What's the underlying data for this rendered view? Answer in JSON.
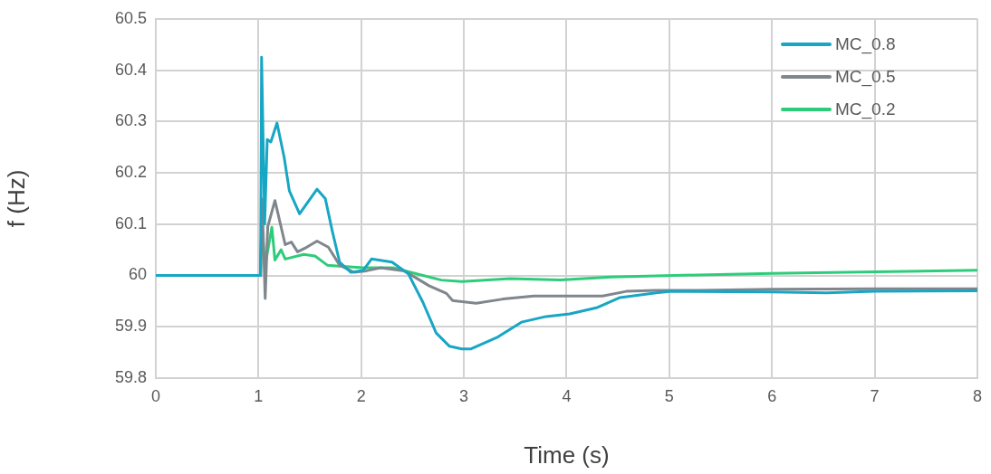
{
  "chart_data": {
    "type": "line",
    "xlabel": "Time (s)",
    "ylabel": "f (Hz)",
    "xlim": [
      0,
      8
    ],
    "xticks": [
      0,
      1,
      2,
      3,
      4,
      5,
      6,
      7,
      8
    ],
    "ylim": [
      59.8,
      60.5
    ],
    "yticks": [
      {
        "value": 59.8,
        "label": "59.8"
      },
      {
        "value": 59.9,
        "label": "59.9"
      },
      {
        "value": 60,
        "label": "60"
      },
      {
        "value": 60.1,
        "label": "60.1"
      },
      {
        "value": 60.2,
        "label": "60.2"
      },
      {
        "value": 60.3,
        "label": "60.3"
      },
      {
        "value": 60.4,
        "label": "60.4"
      },
      {
        "value": 60.5,
        "label": "60.5"
      }
    ],
    "grid": true,
    "legend": "top right",
    "marker": "none",
    "line_style": "solid",
    "series": [
      {
        "name": "MC_0.8",
        "color": "#17a6c4",
        "x": [
          0,
          1.02,
          1.03,
          1.06,
          1.085,
          1.12,
          1.18,
          1.25,
          1.3,
          1.4,
          1.47,
          1.57,
          1.65,
          1.72,
          1.79,
          1.9,
          2.02,
          2.1,
          2.3,
          2.46,
          2.6,
          2.73,
          2.86,
          2.98,
          3.07,
          3.33,
          3.56,
          3.8,
          4.03,
          4.29,
          4.52,
          4.87,
          5.02,
          6,
          6.53,
          7,
          8
        ],
        "values": [
          60,
          60,
          60.425,
          60.1,
          60.265,
          60.26,
          60.297,
          60.23,
          60.165,
          60.12,
          60.14,
          60.168,
          60.15,
          60.085,
          60.026,
          60.006,
          60.01,
          60.032,
          60.026,
          60.003,
          59.948,
          59.888,
          59.862,
          59.857,
          59.857,
          59.88,
          59.909,
          59.92,
          59.925,
          59.937,
          59.957,
          59.966,
          59.969,
          59.968,
          59.966,
          59.969,
          59.97
        ]
      },
      {
        "name": "MC_0.5",
        "color": "#7f868c",
        "x": [
          0,
          1.02,
          1.035,
          1.065,
          1.09,
          1.16,
          1.26,
          1.32,
          1.38,
          1.47,
          1.57,
          1.68,
          1.79,
          1.93,
          2.05,
          2.19,
          2.42,
          2.66,
          2.83,
          2.89,
          3.12,
          3.38,
          3.68,
          4.35,
          4.58,
          4.87,
          5.28,
          6,
          7,
          8
        ],
        "values": [
          60,
          60,
          60.149,
          59.955,
          60.095,
          60.146,
          60.06,
          60.065,
          60.046,
          60.055,
          60.067,
          60.055,
          60.02,
          60.006,
          60.009,
          60.015,
          60.009,
          59.98,
          59.965,
          59.951,
          59.946,
          59.954,
          59.96,
          59.96,
          59.969,
          59.971,
          59.971,
          59.973,
          59.974,
          59.974
        ]
      },
      {
        "name": "MC_0.2",
        "color": "#2ecc7a",
        "x": [
          0,
          1.02,
          1.03,
          1.065,
          1.13,
          1.16,
          1.22,
          1.26,
          1.44,
          1.55,
          1.67,
          1.79,
          2.02,
          2.31,
          2.54,
          2.78,
          2.98,
          3.45,
          3.94,
          4.43,
          5.28,
          6,
          7,
          8
        ],
        "values": [
          60,
          60,
          60.1,
          60.02,
          60.094,
          60.03,
          60.05,
          60.032,
          60.041,
          60.038,
          60.02,
          60.018,
          60.015,
          60.015,
          60.003,
          59.991,
          59.988,
          59.994,
          59.991,
          59.997,
          60.001,
          60.004,
          60.007,
          60.01
        ]
      }
    ]
  }
}
